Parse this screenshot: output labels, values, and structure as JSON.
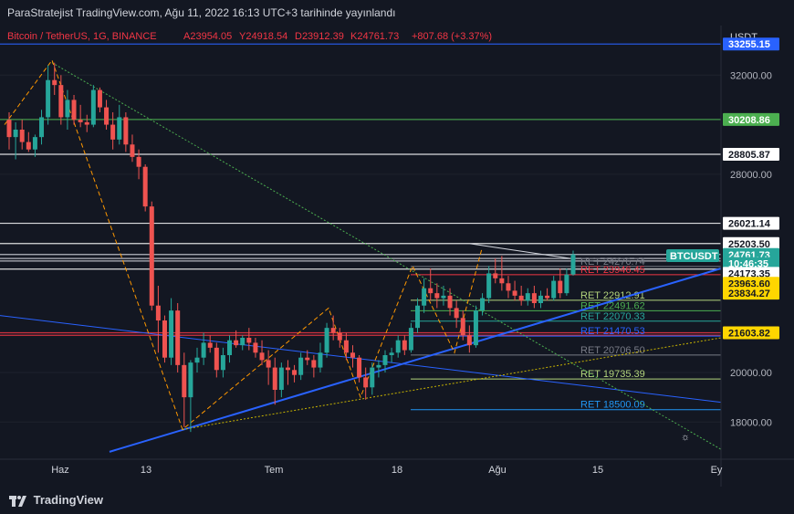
{
  "header": {
    "publish_note": "ParaStratejist TradingView.com, Ağu 11, 2022 16:13 UTC+3 tarihinde yayınlandı",
    "symbol": "Bitcoin / TetherUS, 1G, BINANCE",
    "open": "A23954.05",
    "high": "Y24918.54",
    "low": "D23912.39",
    "close": "K24761.73",
    "change": "+807.68 (+3.37%)"
  },
  "price_axis": {
    "currency": "USDT",
    "ticks": [
      "32000.00",
      "28000.00",
      "20000.00",
      "18000.00"
    ],
    "labels": [
      {
        "text": "33255.15",
        "value": 33255.15,
        "bg": "#2962ff",
        "fg": "#ffffff"
      },
      {
        "text": "30208.86",
        "value": 30208.86,
        "bg": "#4caf50",
        "fg": "#ffffff"
      },
      {
        "text": "28805.87",
        "value": 28805.87,
        "bg": "#ffffff",
        "fg": "#131722"
      },
      {
        "text": "26021.14",
        "value": 26021.14,
        "bg": "#ffffff",
        "fg": "#131722"
      },
      {
        "text": "25203.50",
        "value": 25203.5,
        "bg": "#ffffff",
        "fg": "#131722"
      },
      {
        "text": "24761.73",
        "value": 24761.73,
        "bg": "#26a69a",
        "fg": "#ffffff"
      },
      {
        "text": "10:46:35",
        "value": 24400,
        "bg": "#26a69a",
        "fg": "#ffffff"
      },
      {
        "text": "24173.35",
        "value": 24000,
        "bg": "#ffffff",
        "fg": "#131722"
      },
      {
        "text": "23963.60",
        "value": 23600,
        "bg": "#ffd600",
        "fg": "#131722"
      },
      {
        "text": "23834.27",
        "value": 23200,
        "bg": "#ffd600",
        "fg": "#131722"
      },
      {
        "text": "21603.82",
        "value": 21603.82,
        "bg": "#ffd600",
        "fg": "#131722"
      }
    ],
    "symbol_badge": "BTCUSDT"
  },
  "time_axis": {
    "labels": [
      "Haz",
      "13",
      "Tem",
      "18",
      "Ağu",
      "15",
      "Ey"
    ]
  },
  "fib_levels": [
    {
      "text": "RET 24276.74",
      "value": 24276.74,
      "color": "#787b86"
    },
    {
      "text": "RET 23946.45",
      "value": 23946.45,
      "color": "#f23645"
    },
    {
      "text": "RET 22912.91",
      "value": 22912.91,
      "color": "#b3d47c"
    },
    {
      "text": "RET 22491.62",
      "value": 22491.62,
      "color": "#4caf50"
    },
    {
      "text": "RET 22070.33",
      "value": 22070.33,
      "color": "#26a69a"
    },
    {
      "text": "RET 21470.53",
      "value": 21470.53,
      "color": "#2962ff"
    },
    {
      "text": "RET 20706.50",
      "value": 20706.5,
      "color": "#787b86"
    },
    {
      "text": "RET 19735.39",
      "value": 19735.39,
      "color": "#b3d47c"
    },
    {
      "text": "RET 18500.09",
      "value": 18500.09,
      "color": "#2196f3"
    }
  ],
  "brand": "TradingView",
  "chart_data": {
    "type": "candlestick",
    "title": "Bitcoin / TetherUS, 1G, BINANCE",
    "ylim": [
      16500,
      34000
    ],
    "y_ticks": [
      18000,
      20000,
      28000,
      32000
    ],
    "x_labels": [
      "Haz",
      "13",
      "Tem",
      "18",
      "Ağu",
      "15",
      "Ey"
    ],
    "horizontal_lines": [
      {
        "value": 33255.15,
        "color": "#2962ff"
      },
      {
        "value": 30208.86,
        "color": "#4caf50"
      },
      {
        "value": 28805.87,
        "color": "#ffffff"
      },
      {
        "value": 26021.14,
        "color": "#ffffff"
      },
      {
        "value": 25203.5,
        "color": "#ffffff"
      },
      {
        "value": 24761.73,
        "color": "#d1d4dc"
      },
      {
        "value": 24600,
        "color": "#d1d4dc"
      },
      {
        "value": 24500,
        "color": "#d1d4dc"
      },
      {
        "value": 24173.35,
        "color": "#ffffff"
      },
      {
        "value": 21603.82,
        "color": "#f23645"
      },
      {
        "value": 21500,
        "color": "#f23645"
      }
    ],
    "candles": [
      {
        "o": 30200,
        "h": 30500,
        "l": 29000,
        "c": 29500
      },
      {
        "o": 29500,
        "h": 30100,
        "l": 28600,
        "c": 29800
      },
      {
        "o": 29800,
        "h": 30200,
        "l": 29000,
        "c": 29300
      },
      {
        "o": 29300,
        "h": 29700,
        "l": 28900,
        "c": 29000
      },
      {
        "o": 29000,
        "h": 29600,
        "l": 28700,
        "c": 29500
      },
      {
        "o": 29500,
        "h": 30600,
        "l": 29200,
        "c": 30300
      },
      {
        "o": 30300,
        "h": 32400,
        "l": 30000,
        "c": 31800
      },
      {
        "o": 31800,
        "h": 32500,
        "l": 31200,
        "c": 31600
      },
      {
        "o": 31600,
        "h": 32000,
        "l": 30000,
        "c": 30300
      },
      {
        "o": 30300,
        "h": 31400,
        "l": 29800,
        "c": 31000
      },
      {
        "o": 31000,
        "h": 31200,
        "l": 30000,
        "c": 30200
      },
      {
        "o": 30200,
        "h": 30800,
        "l": 29900,
        "c": 30100
      },
      {
        "o": 30100,
        "h": 30400,
        "l": 29700,
        "c": 30000
      },
      {
        "o": 30000,
        "h": 31600,
        "l": 29900,
        "c": 31400
      },
      {
        "o": 31400,
        "h": 31500,
        "l": 30500,
        "c": 30700
      },
      {
        "o": 30700,
        "h": 31000,
        "l": 29800,
        "c": 30000
      },
      {
        "o": 30000,
        "h": 30500,
        "l": 29000,
        "c": 29400
      },
      {
        "o": 29400,
        "h": 30800,
        "l": 29200,
        "c": 30300
      },
      {
        "o": 30300,
        "h": 30500,
        "l": 28900,
        "c": 29200
      },
      {
        "o": 29200,
        "h": 29600,
        "l": 28500,
        "c": 28700
      },
      {
        "o": 28700,
        "h": 29000,
        "l": 27800,
        "c": 28300
      },
      {
        "o": 28300,
        "h": 28400,
        "l": 26500,
        "c": 26700
      },
      {
        "o": 26700,
        "h": 26900,
        "l": 22500,
        "c": 22700
      },
      {
        "o": 22700,
        "h": 23500,
        "l": 20800,
        "c": 22100
      },
      {
        "o": 22100,
        "h": 22300,
        "l": 20400,
        "c": 20600
      },
      {
        "o": 20600,
        "h": 23000,
        "l": 20300,
        "c": 22500
      },
      {
        "o": 22500,
        "h": 22800,
        "l": 20000,
        "c": 20300
      },
      {
        "o": 20300,
        "h": 20800,
        "l": 17800,
        "c": 19000
      },
      {
        "o": 19000,
        "h": 20500,
        "l": 17600,
        "c": 20400
      },
      {
        "o": 20400,
        "h": 21000,
        "l": 20000,
        "c": 20600
      },
      {
        "o": 20600,
        "h": 21600,
        "l": 20300,
        "c": 21200
      },
      {
        "o": 21200,
        "h": 21500,
        "l": 20800,
        "c": 21000
      },
      {
        "o": 21000,
        "h": 21200,
        "l": 19800,
        "c": 20100
      },
      {
        "o": 20100,
        "h": 21000,
        "l": 19800,
        "c": 20700
      },
      {
        "o": 20700,
        "h": 21500,
        "l": 20400,
        "c": 21300
      },
      {
        "o": 21300,
        "h": 21700,
        "l": 21000,
        "c": 21100
      },
      {
        "o": 21100,
        "h": 21500,
        "l": 20900,
        "c": 21400
      },
      {
        "o": 21400,
        "h": 21800,
        "l": 20900,
        "c": 21200
      },
      {
        "o": 21200,
        "h": 21400,
        "l": 20600,
        "c": 20800
      },
      {
        "o": 20800,
        "h": 21300,
        "l": 20300,
        "c": 20500
      },
      {
        "o": 20500,
        "h": 20900,
        "l": 19500,
        "c": 20200
      },
      {
        "o": 20200,
        "h": 20600,
        "l": 18700,
        "c": 19300
      },
      {
        "o": 19300,
        "h": 20400,
        "l": 19000,
        "c": 20200
      },
      {
        "o": 20200,
        "h": 20500,
        "l": 19500,
        "c": 20100
      },
      {
        "o": 20100,
        "h": 20300,
        "l": 19600,
        "c": 19900
      },
      {
        "o": 19900,
        "h": 20800,
        "l": 19700,
        "c": 20600
      },
      {
        "o": 20600,
        "h": 20900,
        "l": 20300,
        "c": 20500
      },
      {
        "o": 20500,
        "h": 20700,
        "l": 19800,
        "c": 20200
      },
      {
        "o": 20200,
        "h": 21200,
        "l": 20000,
        "c": 20800
      },
      {
        "o": 20800,
        "h": 22000,
        "l": 20600,
        "c": 21800
      },
      {
        "o": 21800,
        "h": 22300,
        "l": 21300,
        "c": 21600
      },
      {
        "o": 21600,
        "h": 21800,
        "l": 21000,
        "c": 21300
      },
      {
        "o": 21300,
        "h": 21600,
        "l": 20500,
        "c": 20800
      },
      {
        "o": 20800,
        "h": 21100,
        "l": 20200,
        "c": 20600
      },
      {
        "o": 20600,
        "h": 20700,
        "l": 19600,
        "c": 19800
      },
      {
        "o": 19800,
        "h": 20200,
        "l": 18900,
        "c": 19400
      },
      {
        "o": 19400,
        "h": 20400,
        "l": 19100,
        "c": 20200
      },
      {
        "o": 20200,
        "h": 20500,
        "l": 19800,
        "c": 20300
      },
      {
        "o": 20300,
        "h": 20900,
        "l": 20000,
        "c": 20700
      },
      {
        "o": 20700,
        "h": 21000,
        "l": 20400,
        "c": 20800
      },
      {
        "o": 20800,
        "h": 21500,
        "l": 20600,
        "c": 21300
      },
      {
        "o": 21300,
        "h": 21500,
        "l": 20700,
        "c": 20900
      },
      {
        "o": 20900,
        "h": 22000,
        "l": 20800,
        "c": 21800
      },
      {
        "o": 21800,
        "h": 23000,
        "l": 21600,
        "c": 22700
      },
      {
        "o": 22700,
        "h": 23800,
        "l": 22400,
        "c": 23400
      },
      {
        "o": 23400,
        "h": 24200,
        "l": 22900,
        "c": 23200
      },
      {
        "o": 23200,
        "h": 23600,
        "l": 22600,
        "c": 23000
      },
      {
        "o": 23000,
        "h": 23500,
        "l": 22700,
        "c": 23100
      },
      {
        "o": 23100,
        "h": 23400,
        "l": 22300,
        "c": 22600
      },
      {
        "o": 22600,
        "h": 22900,
        "l": 21800,
        "c": 22200
      },
      {
        "o": 22200,
        "h": 22500,
        "l": 21300,
        "c": 21500
      },
      {
        "o": 21500,
        "h": 21900,
        "l": 20800,
        "c": 21100
      },
      {
        "o": 21100,
        "h": 22700,
        "l": 21000,
        "c": 22500
      },
      {
        "o": 22500,
        "h": 23200,
        "l": 22300,
        "c": 23000
      },
      {
        "o": 23000,
        "h": 24300,
        "l": 22800,
        "c": 24000
      },
      {
        "o": 24000,
        "h": 24600,
        "l": 23600,
        "c": 23800
      },
      {
        "o": 23800,
        "h": 24700,
        "l": 23300,
        "c": 23600
      },
      {
        "o": 23600,
        "h": 23900,
        "l": 23000,
        "c": 23300
      },
      {
        "o": 23300,
        "h": 23700,
        "l": 22900,
        "c": 23100
      },
      {
        "o": 23100,
        "h": 23500,
        "l": 22700,
        "c": 22900
      },
      {
        "o": 22900,
        "h": 23400,
        "l": 22700,
        "c": 23200
      },
      {
        "o": 23200,
        "h": 23500,
        "l": 22600,
        "c": 22800
      },
      {
        "o": 22800,
        "h": 23300,
        "l": 22600,
        "c": 23100
      },
      {
        "o": 23100,
        "h": 23400,
        "l": 22900,
        "c": 23000
      },
      {
        "o": 23000,
        "h": 23900,
        "l": 22900,
        "c": 23700
      },
      {
        "o": 23700,
        "h": 24200,
        "l": 23000,
        "c": 23200
      },
      {
        "o": 23200,
        "h": 24200,
        "l": 23100,
        "c": 23954
      },
      {
        "o": 23954,
        "h": 24918,
        "l": 23912,
        "c": 24761
      }
    ]
  }
}
